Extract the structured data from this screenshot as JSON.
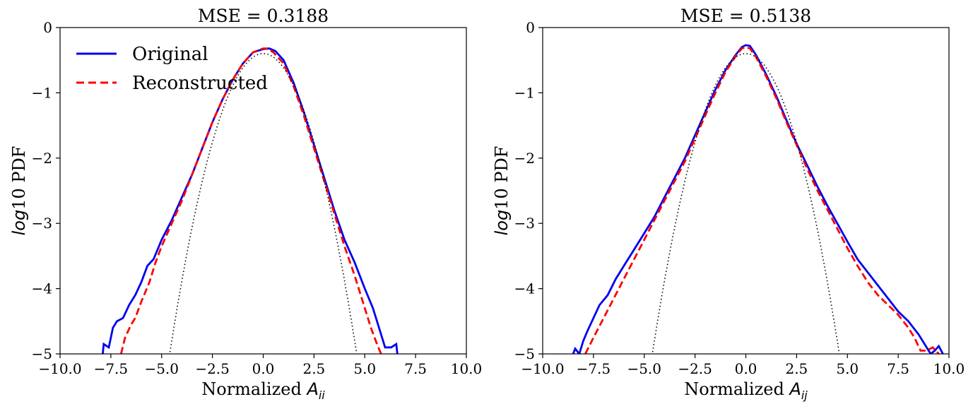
{
  "chart_data": [
    {
      "type": "line",
      "title": "MSE = 0.3188",
      "xlabel": "Normalized ",
      "xlabel_symbol": "A",
      "xlabel_sub": "ii",
      "ylabel": " PDF",
      "ylabel_italic": "log",
      "ylabel_num": "10",
      "xlim": [
        -10,
        10
      ],
      "ylim": [
        -5,
        0
      ],
      "xticks": [
        -10,
        -7.5,
        -5,
        -2.5,
        0,
        2.5,
        5,
        7.5,
        10
      ],
      "xtick_labels": [
        "−10.0",
        "−7.5",
        "−5.0",
        "−2.5",
        "0.0",
        "2.5",
        "5.0",
        "7.5",
        "10.0"
      ],
      "yticks": [
        0,
        -1,
        -2,
        -3,
        -4,
        -5
      ],
      "ytick_labels": [
        "0",
        "−1",
        "−2",
        "−3",
        "−4",
        "−5"
      ],
      "grid": false,
      "legend_position": "top-left",
      "series": [
        {
          "name": "Original",
          "color": "#0000ee",
          "style": "solid",
          "x": [
            -7.9,
            -7.85,
            -7.6,
            -7.4,
            -7.2,
            -6.9,
            -6.6,
            -6.3,
            -6.0,
            -5.7,
            -5.4,
            -5.0,
            -4.5,
            -4.0,
            -3.5,
            -3.0,
            -2.5,
            -2.0,
            -1.5,
            -1.0,
            -0.5,
            0.0,
            0.3,
            0.6,
            1.0,
            1.5,
            2.0,
            2.5,
            3.0,
            3.5,
            4.0,
            4.5,
            5.0,
            5.4,
            5.7,
            6.0,
            6.3,
            6.55,
            6.6
          ],
          "y": [
            -5.0,
            -4.85,
            -4.9,
            -4.6,
            -4.5,
            -4.45,
            -4.25,
            -4.1,
            -3.9,
            -3.65,
            -3.55,
            -3.25,
            -2.95,
            -2.6,
            -2.25,
            -1.85,
            -1.45,
            -1.1,
            -0.8,
            -0.55,
            -0.38,
            -0.33,
            -0.32,
            -0.36,
            -0.5,
            -0.85,
            -1.3,
            -1.8,
            -2.3,
            -2.8,
            -3.25,
            -3.6,
            -4.0,
            -4.3,
            -4.6,
            -4.9,
            -4.9,
            -4.85,
            -5.0
          ]
        },
        {
          "name": "Reconstructed",
          "color": "#ff0000",
          "style": "dashed",
          "x": [
            -7.0,
            -6.8,
            -6.5,
            -6.3,
            -6.0,
            -5.6,
            -5.3,
            -5.0,
            -4.5,
            -4.0,
            -3.5,
            -3.0,
            -2.5,
            -2.0,
            -1.5,
            -1.0,
            -0.5,
            0.0,
            0.2,
            0.5,
            1.0,
            1.5,
            2.0,
            2.5,
            3.0,
            3.5,
            4.0,
            4.5,
            5.0,
            5.3,
            5.6,
            5.8
          ],
          "y": [
            -5.0,
            -4.75,
            -4.55,
            -4.45,
            -4.2,
            -3.9,
            -3.6,
            -3.35,
            -3.0,
            -2.65,
            -2.25,
            -1.85,
            -1.45,
            -1.1,
            -0.8,
            -0.55,
            -0.38,
            -0.32,
            -0.32,
            -0.38,
            -0.55,
            -0.9,
            -1.35,
            -1.85,
            -2.35,
            -2.85,
            -3.35,
            -3.8,
            -4.3,
            -4.6,
            -4.85,
            -5.0
          ]
        },
        {
          "name": "",
          "color": "#000000",
          "style": "dotted",
          "gaussian": true
        }
      ]
    },
    {
      "type": "line",
      "title": "MSE = 0.5138",
      "xlabel": "Normalized ",
      "xlabel_symbol": "A",
      "xlabel_sub": "ij",
      "ylabel": " PDF",
      "ylabel_italic": "log",
      "ylabel_num": "10",
      "xlim": [
        -10,
        10
      ],
      "ylim": [
        -5,
        0
      ],
      "xticks": [
        -10,
        -7.5,
        -5,
        -2.5,
        0,
        2.5,
        5,
        7.5,
        10
      ],
      "xtick_labels": [
        "−10.0",
        "−7.5",
        "−5.0",
        "−2.5",
        "0.0",
        "2.5",
        "5.0",
        "7.5",
        "10.0"
      ],
      "yticks": [
        0,
        -1,
        -2,
        -3,
        -4,
        -5
      ],
      "ytick_labels": [
        "0",
        "−1",
        "−2",
        "−3",
        "−4",
        "−5"
      ],
      "grid": false,
      "legend_position": "none",
      "series": [
        {
          "name": "Original",
          "color": "#0000ee",
          "style": "solid",
          "x": [
            -8.5,
            -8.4,
            -8.2,
            -8.0,
            -7.8,
            -7.5,
            -7.2,
            -6.8,
            -6.4,
            -6.0,
            -5.5,
            -5.0,
            -4.5,
            -4.0,
            -3.5,
            -3.0,
            -2.5,
            -2.0,
            -1.5,
            -1.0,
            -0.5,
            -0.2,
            0.0,
            0.2,
            0.5,
            1.0,
            1.5,
            2.0,
            2.5,
            3.0,
            3.5,
            4.0,
            4.5,
            5.0,
            5.5,
            6.0,
            6.5,
            7.0,
            7.5,
            8.0,
            8.5,
            8.8,
            9.1,
            9.3,
            9.5,
            9.7
          ],
          "y": [
            -5.0,
            -4.92,
            -5.0,
            -4.8,
            -4.65,
            -4.45,
            -4.25,
            -4.1,
            -3.85,
            -3.65,
            -3.4,
            -3.15,
            -2.9,
            -2.6,
            -2.3,
            -2.0,
            -1.65,
            -1.3,
            -0.95,
            -0.65,
            -0.42,
            -0.3,
            -0.27,
            -0.28,
            -0.42,
            -0.72,
            -1.05,
            -1.42,
            -1.78,
            -2.1,
            -2.42,
            -2.72,
            -3.0,
            -3.28,
            -3.55,
            -3.75,
            -3.95,
            -4.15,
            -4.35,
            -4.5,
            -4.7,
            -4.85,
            -5.0,
            -4.95,
            -4.88,
            -5.0
          ]
        },
        {
          "name": "Reconstructed",
          "color": "#ff0000",
          "style": "dashed",
          "x": [
            -7.9,
            -7.5,
            -7.0,
            -6.5,
            -6.0,
            -5.5,
            -5.0,
            -4.5,
            -4.0,
            -3.5,
            -3.0,
            -2.5,
            -2.0,
            -1.5,
            -1.0,
            -0.5,
            -0.2,
            0.0,
            0.2,
            0.5,
            1.0,
            1.5,
            2.0,
            2.5,
            3.0,
            3.5,
            4.0,
            4.5,
            5.0,
            5.5,
            6.0,
            6.5,
            7.0,
            7.5,
            8.0,
            8.3,
            8.6,
            8.9,
            9.2,
            9.5
          ],
          "y": [
            -5.0,
            -4.75,
            -4.45,
            -4.15,
            -3.85,
            -3.55,
            -3.25,
            -2.95,
            -2.65,
            -2.35,
            -2.05,
            -1.7,
            -1.35,
            -1.0,
            -0.68,
            -0.44,
            -0.32,
            -0.3,
            -0.32,
            -0.45,
            -0.75,
            -1.08,
            -1.45,
            -1.8,
            -2.15,
            -2.48,
            -2.78,
            -3.08,
            -3.38,
            -3.65,
            -3.9,
            -4.1,
            -4.25,
            -4.4,
            -4.6,
            -4.75,
            -4.95,
            -4.95,
            -4.9,
            -5.0
          ]
        },
        {
          "name": "",
          "color": "#000000",
          "style": "dotted",
          "gaussian": true
        }
      ]
    }
  ]
}
